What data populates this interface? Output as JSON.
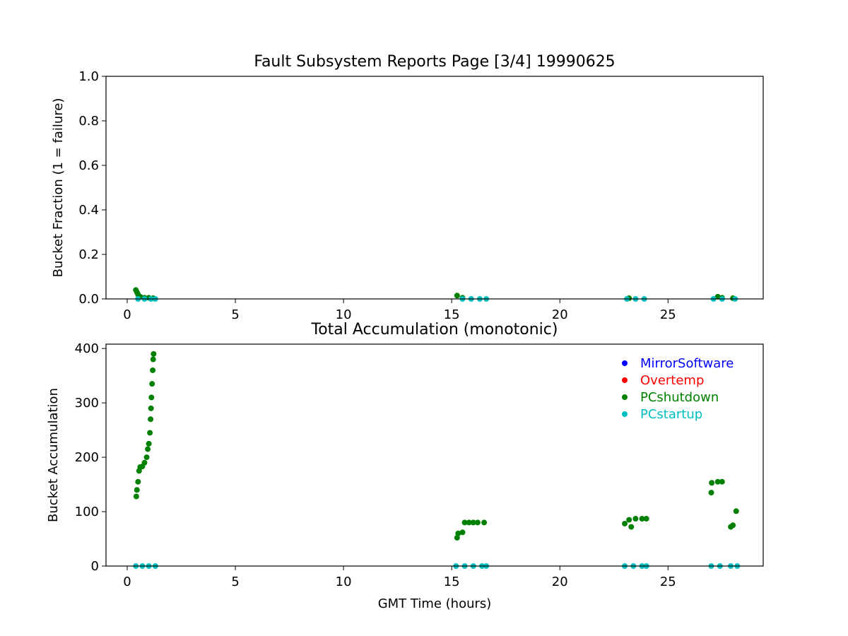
{
  "chart_data": [
    {
      "type": "scatter",
      "title": "Fault Subsystem Reports Page [3/4] 19990625",
      "y_label": "Bucket Fraction (1 = failure)",
      "xlim": [
        -0.98,
        29.4
      ],
      "xticks": [
        0,
        5,
        10,
        15,
        20,
        25
      ],
      "ylim": [
        0,
        1
      ],
      "yticks": [
        {
          "value": 0,
          "label": "0.0"
        },
        {
          "value": 0.2,
          "label": "0.2"
        },
        {
          "value": 0.4,
          "label": "0.4"
        },
        {
          "value": 0.6,
          "label": "0.6"
        },
        {
          "value": 0.8,
          "label": "0.8"
        },
        {
          "value": 1,
          "label": "1.0"
        }
      ],
      "series": [
        {
          "color": "#008000",
          "x": [
            0.4,
            0.45,
            0.5,
            0.6,
            0.8,
            1.0,
            1.2,
            15.25,
            15.5,
            23.2,
            27.3,
            27.5,
            28.0
          ],
          "values": [
            0.04,
            0.03,
            0.02,
            0.01,
            0.005,
            0.005,
            0.003,
            0.015,
            0.005,
            0.003,
            0.01,
            0.005,
            0.003
          ]
        },
        {
          "color": "#00bfbf",
          "x": [
            0.5,
            0.8,
            1.1,
            1.3,
            15.5,
            15.9,
            16.3,
            16.6,
            23.1,
            23.5,
            23.9,
            27.1,
            27.5,
            28.1
          ],
          "values": [
            0,
            0,
            0,
            0,
            0,
            0,
            0,
            0,
            0,
            0,
            0,
            0,
            0,
            0
          ]
        }
      ]
    },
    {
      "type": "scatter",
      "title": "Total Accumulation (monotonic)",
      "x_label": "GMT Time (hours)",
      "y_label": "Bucket Accumulation",
      "xlim": [
        -0.98,
        29.4
      ],
      "xticks": [
        0,
        5,
        10,
        15,
        20,
        25
      ],
      "ylim": [
        0,
        408
      ],
      "yticks": [
        0,
        100,
        200,
        300,
        400
      ],
      "legend": "upper right",
      "series": [
        {
          "name": "MirrorSoftware",
          "color": "#0000ff",
          "x": [],
          "values": []
        },
        {
          "name": "Overtemp",
          "color": "#ff0000",
          "x": [],
          "values": []
        },
        {
          "name": "PCshutdown",
          "color": "#008000",
          "x": [
            0.42,
            0.45,
            0.5,
            0.55,
            0.6,
            0.7,
            0.8,
            0.9,
            0.95,
            1.0,
            1.05,
            1.08,
            1.1,
            1.12,
            1.15,
            1.18,
            1.2,
            1.22,
            15.25,
            15.3,
            15.5,
            15.6,
            15.8,
            16.0,
            16.2,
            16.5,
            23.0,
            23.2,
            23.3,
            23.5,
            23.8,
            24.0,
            27.0,
            27.02,
            27.3,
            27.5,
            27.9,
            28.0,
            28.15
          ],
          "values": [
            128,
            140,
            155,
            175,
            182,
            183,
            190,
            200,
            215,
            225,
            245,
            270,
            290,
            310,
            335,
            360,
            380,
            390,
            52,
            60,
            62,
            80,
            80,
            80,
            80,
            80,
            78,
            85,
            72,
            87,
            87,
            87,
            135,
            153,
            155,
            155,
            72,
            75,
            101
          ]
        },
        {
          "name": "PCstartup",
          "color": "#00bfbf",
          "x": [
            0.4,
            0.7,
            1.0,
            1.3,
            15.2,
            15.6,
            16.0,
            16.4,
            16.6,
            23.0,
            23.4,
            23.8,
            24.0,
            27.0,
            27.4,
            27.9,
            28.2
          ],
          "values": [
            0,
            0,
            0,
            0,
            0,
            0,
            0,
            0,
            0,
            0,
            0,
            0,
            0,
            0,
            0,
            0,
            0
          ]
        }
      ]
    }
  ]
}
